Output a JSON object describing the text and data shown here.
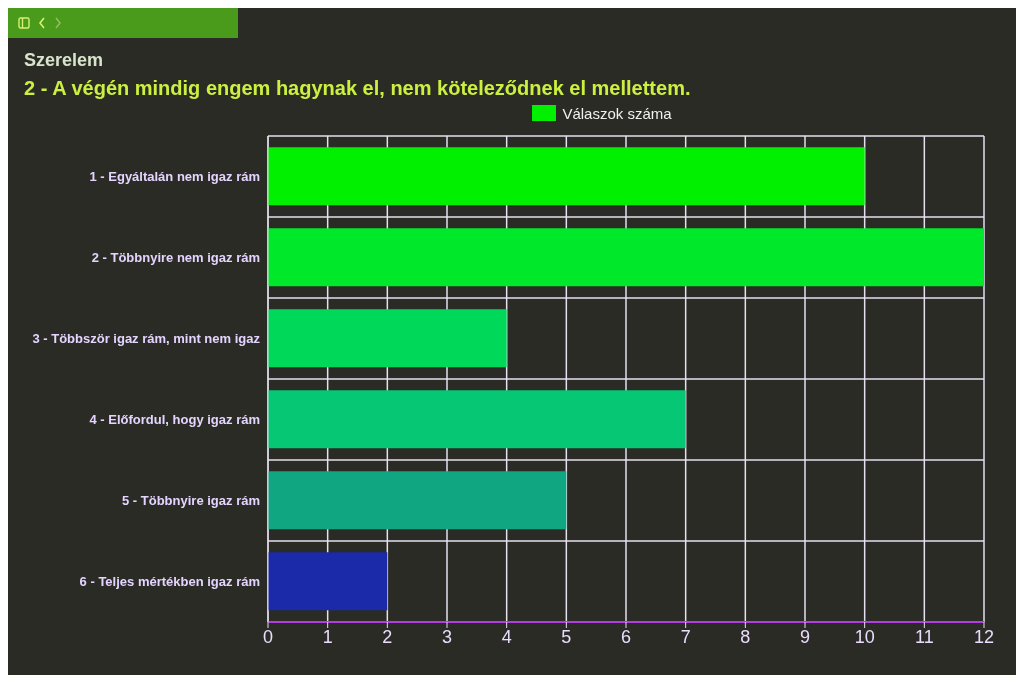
{
  "chart_data": {
    "type": "bar",
    "orientation": "horizontal",
    "title": "Szerelem",
    "subtitle": "2 - A végén mindig engem hagynak el, nem köteleződnek el mellettem.",
    "categories": [
      "1 - Egyáltalán nem igaz rám",
      "2 - Többnyire nem igaz rám",
      "3 - Többször igaz rám, mint nem igaz",
      "4 - Előfordul, hogy igaz rám",
      "5 - Többnyire igaz rám",
      "6 - Teljes mértékben igaz rám"
    ],
    "series": [
      {
        "name": "Válaszok száma",
        "color": "#00f000",
        "values": [
          10,
          12,
          4,
          7,
          5,
          2
        ],
        "colors": [
          "#00f000",
          "#00e82a",
          "#00d85a",
          "#06c874",
          "#10a682",
          "#1a2aa8"
        ]
      }
    ],
    "xlim": [
      0,
      12
    ],
    "xticks": [
      0,
      1,
      2,
      3,
      4,
      5,
      6,
      7,
      8,
      9,
      10,
      11,
      12
    ],
    "grid": true,
    "legend": "top"
  }
}
